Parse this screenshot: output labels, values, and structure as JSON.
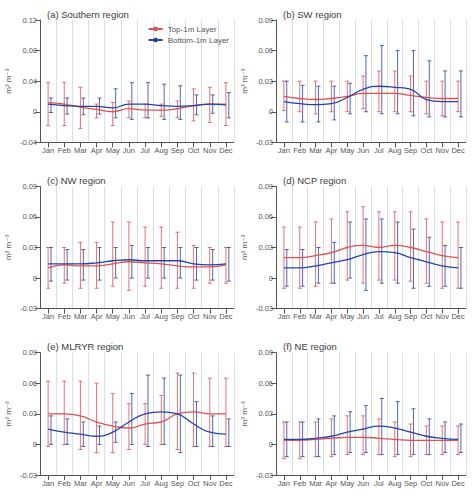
{
  "chart_data": [
    {
      "type": "line",
      "title": "(a) Southern region",
      "categories": [
        "Jan",
        "Feb",
        "Mar",
        "Apr",
        "May",
        "Jun",
        "Jul",
        "Aug",
        "Sep",
        "Oct",
        "Nov",
        "Dec"
      ],
      "ylabel": "m³ m⁻³",
      "ylim": [
        -0.04,
        0.12
      ],
      "yticks": [
        -0.04,
        0,
        0.04,
        0.08,
        0.12
      ],
      "grid": "x",
      "legend": "upper right",
      "series": [
        {
          "name": "Top-1m Layer",
          "color": "#e05050",
          "values": [
            0.012,
            0.01,
            0.006,
            0.003,
            0.0,
            0.004,
            0.002,
            0.002,
            0.004,
            0.008,
            0.01,
            0.01
          ],
          "upper": [
            0.038,
            0.038,
            0.032,
            0.01,
            0.012,
            0.014,
            0.01,
            0.01,
            0.014,
            0.03,
            0.032,
            0.038
          ],
          "lower": [
            -0.018,
            -0.018,
            -0.022,
            -0.008,
            -0.018,
            -0.008,
            -0.008,
            -0.006,
            -0.008,
            -0.012,
            -0.014,
            -0.018
          ]
        },
        {
          "name": "Bottom-1m Layer",
          "color": "#2244aa",
          "values": [
            0.01,
            0.008,
            0.007,
            0.007,
            0.005,
            0.01,
            0.01,
            0.008,
            0.007,
            0.008,
            0.01,
            0.009
          ],
          "upper": [
            0.018,
            0.018,
            0.018,
            0.018,
            0.03,
            0.038,
            0.038,
            0.036,
            0.034,
            0.022,
            0.022,
            0.025
          ],
          "lower": [
            -0.001,
            -0.003,
            -0.004,
            -0.003,
            -0.008,
            -0.01,
            -0.008,
            -0.01,
            -0.01,
            -0.004,
            -0.002,
            -0.008
          ]
        }
      ]
    },
    {
      "type": "line",
      "title": "(b) SW region",
      "categories": [
        "Jan",
        "Feb",
        "Mar",
        "Apr",
        "May",
        "Jun",
        "Jul",
        "Aug",
        "Sep",
        "Oct",
        "Nov",
        "Dec"
      ],
      "ylabel": "m³ m⁻³",
      "ylim": [
        -0.03,
        0.09
      ],
      "yticks": [
        -0.03,
        0,
        0.03,
        0.06,
        0.09
      ],
      "grid": "x",
      "series": [
        {
          "name": "Top-1m Layer",
          "color": "#e05050",
          "values": [
            0.015,
            0.013,
            0.012,
            0.013,
            0.015,
            0.018,
            0.018,
            0.018,
            0.016,
            0.014,
            0.013,
            0.013
          ],
          "upper": [
            0.03,
            0.03,
            0.03,
            0.03,
            0.03,
            0.035,
            0.04,
            0.04,
            0.035,
            0.03,
            0.03,
            0.03
          ],
          "lower": [
            0.001,
            0.0,
            -0.002,
            0.0,
            0.0,
            0.003,
            0.0,
            0.0,
            0.0,
            -0.002,
            -0.004,
            0.0
          ]
        },
        {
          "name": "Bottom-1m Layer",
          "color": "#2244aa",
          "values": [
            0.01,
            0.008,
            0.007,
            0.008,
            0.014,
            0.022,
            0.025,
            0.024,
            0.022,
            0.012,
            0.01,
            0.01
          ],
          "upper": [
            0.03,
            0.026,
            0.025,
            0.025,
            0.028,
            0.055,
            0.065,
            0.06,
            0.06,
            0.05,
            0.04,
            0.04
          ],
          "lower": [
            -0.01,
            -0.01,
            -0.01,
            -0.008,
            -0.002,
            0.0,
            -0.002,
            -0.002,
            -0.004,
            -0.005,
            -0.005,
            -0.005
          ]
        }
      ]
    },
    {
      "type": "line",
      "title": "(c) NW region",
      "categories": [
        "Jan",
        "Feb",
        "Mar",
        "Apr",
        "May",
        "Jun",
        "Jul",
        "Aug",
        "Sep",
        "Oct",
        "Nov",
        "Dec"
      ],
      "ylabel": "m³ m⁻³",
      "ylim": [
        -0.03,
        0.09
      ],
      "yticks": [
        -0.03,
        0,
        0.03,
        0.06,
        0.09
      ],
      "grid": "x",
      "series": [
        {
          "name": "Top-1m Layer",
          "color": "#e05050",
          "values": [
            0.01,
            0.013,
            0.012,
            0.012,
            0.014,
            0.016,
            0.015,
            0.014,
            0.012,
            0.011,
            0.011,
            0.013
          ],
          "upper": [
            0.03,
            0.03,
            0.035,
            0.035,
            0.055,
            0.055,
            0.05,
            0.05,
            0.045,
            0.032,
            0.03,
            0.03
          ],
          "lower": [
            -0.01,
            -0.005,
            -0.01,
            -0.01,
            -0.008,
            -0.012,
            -0.008,
            -0.01,
            -0.01,
            -0.01,
            -0.005,
            -0.005
          ]
        },
        {
          "name": "Bottom-1m Layer",
          "color": "#2244aa",
          "values": [
            0.014,
            0.014,
            0.014,
            0.015,
            0.017,
            0.018,
            0.017,
            0.017,
            0.017,
            0.014,
            0.013,
            0.014
          ],
          "upper": [
            0.03,
            0.028,
            0.028,
            0.03,
            0.03,
            0.032,
            0.03,
            0.03,
            0.03,
            0.03,
            0.028,
            0.03
          ],
          "lower": [
            -0.003,
            -0.002,
            -0.002,
            -0.002,
            0.0,
            0.0,
            0.0,
            0.0,
            0.0,
            -0.002,
            -0.002,
            -0.003
          ]
        }
      ]
    },
    {
      "type": "line",
      "title": "(d) NCP region",
      "categories": [
        "Jan",
        "Feb",
        "Mar",
        "Apr",
        "May",
        "Jun",
        "Jul",
        "Aug",
        "Sep",
        "Oct",
        "Nov",
        "Dec"
      ],
      "ylabel": "m³ m⁻³",
      "ylim": [
        -0.03,
        0.09
      ],
      "yticks": [
        -0.03,
        0,
        0.03,
        0.06,
        0.09
      ],
      "grid": "x",
      "series": [
        {
          "name": "Top-1m Layer",
          "color": "#e05050",
          "values": [
            0.02,
            0.02,
            0.022,
            0.025,
            0.03,
            0.032,
            0.03,
            0.032,
            0.03,
            0.026,
            0.022,
            0.02
          ],
          "upper": [
            0.05,
            0.05,
            0.055,
            0.058,
            0.065,
            0.07,
            0.065,
            0.065,
            0.065,
            0.058,
            0.055,
            0.055
          ],
          "lower": [
            -0.01,
            -0.01,
            -0.008,
            -0.005,
            -0.002,
            -0.005,
            -0.002,
            -0.002,
            -0.003,
            -0.005,
            -0.01,
            -0.01
          ]
        },
        {
          "name": "Bottom-1m Layer",
          "color": "#2244aa",
          "values": [
            0.01,
            0.01,
            0.012,
            0.015,
            0.018,
            0.023,
            0.026,
            0.025,
            0.02,
            0.016,
            0.012,
            0.01
          ],
          "upper": [
            0.028,
            0.028,
            0.03,
            0.035,
            0.055,
            0.058,
            0.058,
            0.055,
            0.048,
            0.04,
            0.032,
            0.03
          ],
          "lower": [
            -0.008,
            -0.008,
            -0.005,
            -0.005,
            -0.0,
            -0.012,
            -0.005,
            -0.005,
            -0.01,
            -0.008,
            -0.008,
            -0.01
          ]
        }
      ]
    },
    {
      "type": "line",
      "title": "(e) MLRYR region",
      "categories": [
        "Jan",
        "Feb",
        "Mar",
        "Apr",
        "May",
        "Jun",
        "Jul",
        "Aug",
        "Sep",
        "Oct",
        "Nov",
        "Dec"
      ],
      "ylabel": "m³ m⁻³",
      "ylim": [
        -0.03,
        0.09
      ],
      "yticks": [
        -0.03,
        0,
        0.03,
        0.06,
        0.09
      ],
      "grid": "x",
      "series": [
        {
          "name": "Top-1m Layer",
          "color": "#e05050",
          "values": [
            0.03,
            0.03,
            0.028,
            0.022,
            0.018,
            0.016,
            0.02,
            0.022,
            0.03,
            0.032,
            0.03,
            0.03
          ],
          "upper": [
            0.062,
            0.062,
            0.062,
            0.06,
            0.05,
            0.04,
            0.04,
            0.048,
            0.07,
            0.07,
            0.065,
            0.065
          ],
          "lower": [
            -0.002,
            0.0,
            -0.005,
            -0.008,
            -0.008,
            -0.005,
            -0.0,
            0.0,
            -0.005,
            -0.002,
            -0.002,
            -0.002
          ]
        },
        {
          "name": "Bottom-1m Layer",
          "color": "#2244aa",
          "values": [
            0.015,
            0.012,
            0.01,
            0.008,
            0.012,
            0.022,
            0.03,
            0.032,
            0.03,
            0.02,
            0.012,
            0.01
          ],
          "upper": [
            0.028,
            0.025,
            0.022,
            0.018,
            0.022,
            0.05,
            0.068,
            0.065,
            0.068,
            0.042,
            0.028,
            0.025
          ],
          "lower": [
            -0.0,
            -0.0,
            -0.002,
            0.0,
            0.002,
            0.0,
            -0.002,
            -0.0,
            -0.008,
            -0.002,
            -0.002,
            -0.002
          ]
        }
      ]
    },
    {
      "type": "line",
      "title": "(f) NE region",
      "categories": [
        "Jan",
        "Feb",
        "Mar",
        "Apr",
        "May",
        "Jun",
        "Jul",
        "Aug",
        "Sep",
        "Oct",
        "Nov",
        "Dec"
      ],
      "ylabel": "m³ m⁻³",
      "ylim": [
        -0.03,
        0.09
      ],
      "yticks": [
        -0.03,
        0,
        0.03,
        0.06,
        0.09
      ],
      "grid": "x",
      "series": [
        {
          "name": "Top-1m Layer",
          "color": "#e05050",
          "values": [
            0.004,
            0.004,
            0.005,
            0.006,
            0.007,
            0.007,
            0.006,
            0.005,
            0.004,
            0.004,
            0.004,
            0.004
          ],
          "upper": [
            0.022,
            0.022,
            0.022,
            0.025,
            0.028,
            0.028,
            0.025,
            0.022,
            0.02,
            0.018,
            0.018,
            0.018
          ],
          "lower": [
            -0.014,
            -0.014,
            -0.012,
            -0.012,
            -0.01,
            -0.01,
            -0.01,
            -0.012,
            -0.012,
            -0.01,
            -0.01,
            -0.01
          ]
        },
        {
          "name": "Bottom-1m Layer",
          "color": "#2244aa",
          "values": [
            0.005,
            0.005,
            0.006,
            0.008,
            0.012,
            0.015,
            0.018,
            0.016,
            0.012,
            0.008,
            0.006,
            0.005
          ],
          "upper": [
            0.022,
            0.022,
            0.025,
            0.028,
            0.032,
            0.038,
            0.045,
            0.042,
            0.035,
            0.025,
            0.022,
            0.02
          ],
          "lower": [
            -0.012,
            -0.012,
            -0.012,
            -0.01,
            -0.008,
            -0.008,
            -0.01,
            -0.01,
            -0.01,
            -0.01,
            -0.008,
            -0.008
          ]
        }
      ]
    }
  ]
}
